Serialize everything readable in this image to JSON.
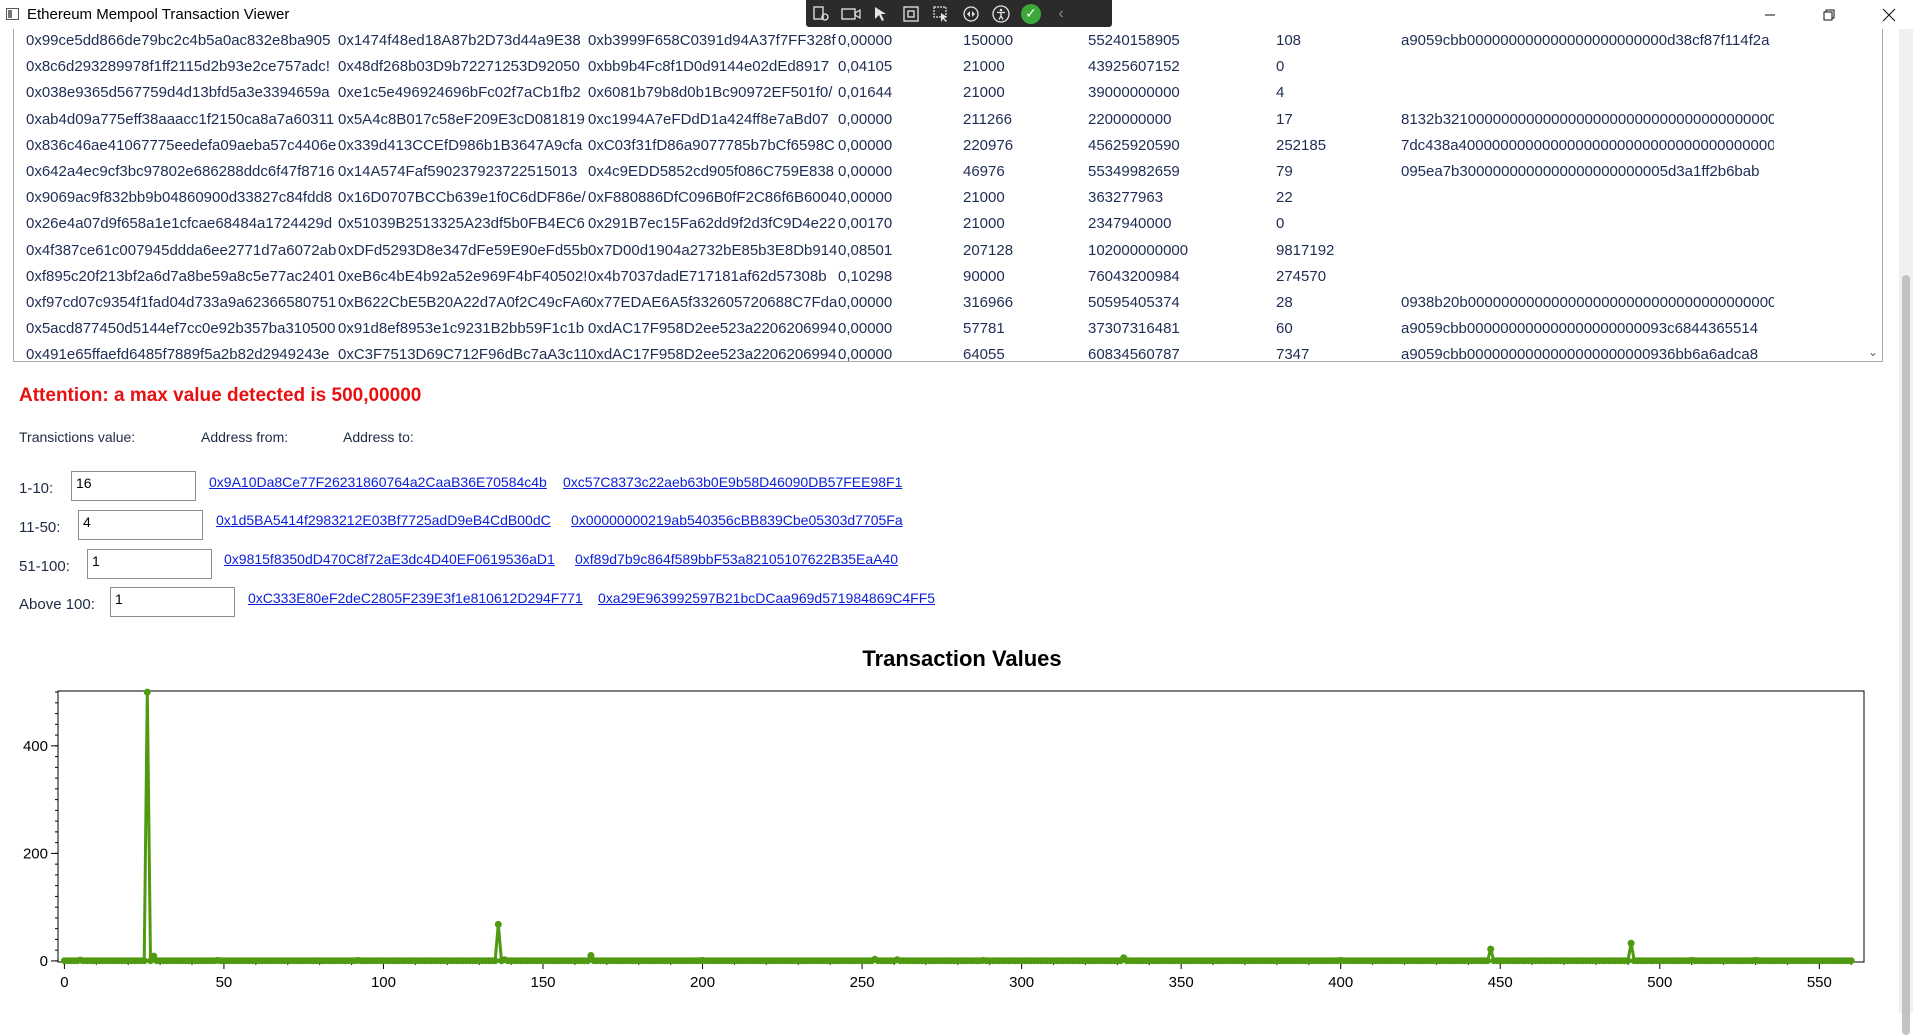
{
  "window": {
    "title": "Ethereum Mempool Transaction Viewer",
    "icons": [
      "app-window-icon",
      "minimize-icon",
      "restore-icon",
      "close-icon"
    ]
  },
  "debug_toolbar": {
    "icons": [
      "live-visual-tree-icon",
      "video-camera-icon",
      "select-element-icon",
      "display-layout-adorners-icon",
      "track-focus-icon",
      "hot-reload-icon",
      "accessibility-icon",
      "check-icon",
      "collapse-chevron-icon"
    ]
  },
  "grid": {
    "rows": [
      {
        "hash": "0x99ce5dd866de79bc2c4b5a0ac832e8ba905",
        "from": "0x1474f48ed18A87b2D73d44a9E38",
        "to": "0xb3999F658C0391d94A37f7FF328f",
        "value": "0,00000",
        "gas": "150000",
        "gas_price": "55240158905",
        "nonce": "108",
        "input": "a9059cbb000000000000000000000000d38cf87f114f2a"
      },
      {
        "hash": "0x8c6d293289978f1ff2115d2b93e2ce757adc!",
        "from": "0x48df268b03D9b72271253D92050",
        "to": "0xbb9b4Fc8f1D0d9144e02dEd8917",
        "value": "0,04105",
        "gas": "21000",
        "gas_price": "43925607152",
        "nonce": "0",
        "input": ""
      },
      {
        "hash": "0x038e9365d567759d4d13bfd5a3e3394659a",
        "from": "0xe1c5e496924696bFc02f7aCb1fb2",
        "to": "0x6081b79b8d0b1Bc90972EF501f0/",
        "value": "0,01644",
        "gas": "21000",
        "gas_price": "39000000000",
        "nonce": "4",
        "input": ""
      },
      {
        "hash": "0xab4d09a775eff38aaacc1f2150ca8a7a60311",
        "from": "0x5A4c8B017c58eF209E3cD081819",
        "to": "0xc1994A7eFDdD1a424ff8e7aBd07",
        "value": "0,00000",
        "gas": "211266",
        "gas_price": "2200000000",
        "nonce": "17",
        "input": "8132b32100000000000000000000000000000000000000"
      },
      {
        "hash": "0x836c46ae41067775eedefa09aeba57c4406e",
        "from": "0x339d413CCEfD986b1B3647A9cfa",
        "to": "0xC03f31fD86a9077785b7bCf6598C",
        "value": "0,00000",
        "gas": "220976",
        "gas_price": "45625920590",
        "nonce": "252185",
        "input": "7dc438a400000000000000000000000000000000000000"
      },
      {
        "hash": "0x642a4ec9cf3bc97802e686288ddc6f47f8716",
        "from": "0x14A574Faf590237923722515013",
        "to": "0x4c9EDD5852cd905f086C759E838",
        "value": "0,00000",
        "gas": "46976",
        "gas_price": "55349982659",
        "nonce": "79",
        "input": "095ea7b3000000000000000000000005d3a1ff2b6bab"
      },
      {
        "hash": "0x9069ac9f832bb9b04860900d33827c84fdd8",
        "from": "0x16D0707BCCb639e1f0C6dDF86e/",
        "to": "0xF880886DfC096B0fF2C86f6B6004",
        "value": "0,00000",
        "gas": "21000",
        "gas_price": "363277963",
        "nonce": "22",
        "input": ""
      },
      {
        "hash": "0x26e4a07d9f658a1e1cfcae68484a1724429d",
        "from": "0x51039B2513325A23df5b0FB4EC6",
        "to": "0x291B7ec15Fa62dd9f2d3fC9D4e22",
        "value": "0,00170",
        "gas": "21000",
        "gas_price": "2347940000",
        "nonce": "0",
        "input": ""
      },
      {
        "hash": "0x4f387ce61c007945ddda6ee2771d7a6072ab",
        "from": "0xDFd5293D8e347dFe59E90eFd55b",
        "to": "0x7D00d1904a2732bE85b3E8Db914",
        "value": "0,08501",
        "gas": "207128",
        "gas_price": "102000000000",
        "nonce": "9817192",
        "input": ""
      },
      {
        "hash": "0xf895c20f213bf2a6d7a8be59a8c5e77ac2401",
        "from": "0xeB6c4bE4b92a52e969F4bF40502!",
        "to": "0x4b7037dadE717181af62d57308b",
        "value": "0,10298",
        "gas": "90000",
        "gas_price": "76043200984",
        "nonce": "274570",
        "input": ""
      },
      {
        "hash": "0xf97cd07c9354f1fad04d733a9a62366580751",
        "from": "0xB622CbE5B20A22d7A0f2C49cFA6",
        "to": "0x77EDAE6A5f332605720688C7Fda",
        "value": "0,00000",
        "gas": "316966",
        "gas_price": "50595405374",
        "nonce": "28",
        "input": "0938b20b00000000000000000000000000000000000000"
      },
      {
        "hash": "0x5acd877450d5144ef7cc0e92b357ba310500",
        "from": "0x91d8ef8953e1c9231B2bb59F1c1b",
        "to": "0xdAC17F958D2ee523a2206206994",
        "value": "0,00000",
        "gas": "57781",
        "gas_price": "37307316481",
        "nonce": "60",
        "input": "a9059cbb000000000000000000000093c6844365514"
      },
      {
        "hash": "0x491e65ffaefd6485f7889f5a2b82d2949243e",
        "from": "0xC3F7513D69C712F96dBc7aA3c11",
        "to": "0xdAC17F958D2ee523a2206206994",
        "value": "0,00000",
        "gas": "64055",
        "gas_price": "60834560787",
        "nonce": "7347",
        "input": "a9059cbb0000000000000000000000936bb6a6adca8"
      }
    ]
  },
  "attention": "Attention: a max value detected is 500,00000",
  "headers": {
    "value": "Transictions value:",
    "from": "Address from:",
    "to": "Address to:"
  },
  "ranges": [
    {
      "label": "1-10:",
      "count": "16",
      "from": "0x9A10Da8Ce77F26231860764a2CaaB36E70584c4b",
      "to": "0xc57C8373c22aeb63b0E9b58D46090DB57FEE98F1"
    },
    {
      "label": "11-50:",
      "count": "4",
      "from": "0x1d5BA5414f2983212E03Bf7725adD9eB4CdB00dC",
      "to": "0x00000000219ab540356cBB839Cbe05303d7705Fa"
    },
    {
      "label": "51-100:",
      "count": "1",
      "from": "0x9815f8350dD470C8f72aE3dc4D40EF0619536aD1",
      "to": "0xf89d7b9c864f589bbF53a82105107622B35EaA40"
    },
    {
      "label": "Above 100:",
      "count": "1",
      "from": "0xC333E80eF2deC2805F239E3f1e810612D294F771",
      "to": "0xa29E963992597B21bcDCaa969d571984869C4FF5"
    }
  ],
  "chart_data": {
    "type": "line",
    "title": "Transaction Values",
    "xlabel": "",
    "ylabel": "",
    "xlim": [
      -2,
      564
    ],
    "ylim": [
      -2,
      502
    ],
    "xticks": [
      0,
      50,
      100,
      150,
      200,
      250,
      300,
      350,
      400,
      450,
      500,
      550
    ],
    "yticks": [
      0,
      200,
      400
    ],
    "grid": false,
    "color": "#4f9a10",
    "n_points": 561,
    "baseline": 0.5,
    "spikes": [
      {
        "x": 5,
        "y": 1.5
      },
      {
        "x": 26,
        "y": 500
      },
      {
        "x": 28,
        "y": 9
      },
      {
        "x": 48,
        "y": 1
      },
      {
        "x": 92,
        "y": 1
      },
      {
        "x": 136,
        "y": 68
      },
      {
        "x": 138,
        "y": 2
      },
      {
        "x": 165,
        "y": 10
      },
      {
        "x": 200,
        "y": 1
      },
      {
        "x": 254,
        "y": 3
      },
      {
        "x": 261,
        "y": 2
      },
      {
        "x": 288,
        "y": 1
      },
      {
        "x": 332,
        "y": 6
      },
      {
        "x": 400,
        "y": 1
      },
      {
        "x": 447,
        "y": 22
      },
      {
        "x": 491,
        "y": 33
      },
      {
        "x": 510,
        "y": 1
      },
      {
        "x": 530,
        "y": 1
      }
    ]
  }
}
